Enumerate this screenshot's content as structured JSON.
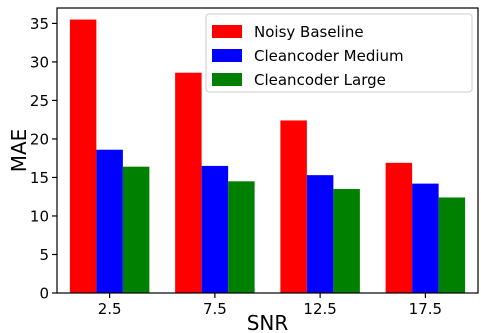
{
  "chart_data": {
    "type": "bar",
    "categories": [
      "2.5",
      "7.5",
      "12.5",
      "17.5"
    ],
    "series": [
      {
        "name": "Noisy Baseline",
        "color": "#ff0000",
        "values": [
          35.5,
          28.6,
          22.4,
          16.9
        ]
      },
      {
        "name": "Cleancoder Medium",
        "color": "#0000ff",
        "values": [
          18.6,
          16.5,
          15.3,
          14.2
        ]
      },
      {
        "name": "Cleancoder Large",
        "color": "#008000",
        "values": [
          16.4,
          14.5,
          13.5,
          12.4
        ]
      }
    ],
    "xlabel": "SNR",
    "ylabel": "MAE",
    "ylim": [
      0,
      37
    ],
    "yticks": [
      0,
      5,
      10,
      15,
      20,
      25,
      30,
      35
    ],
    "legend_position": "top-right",
    "grid": false
  }
}
